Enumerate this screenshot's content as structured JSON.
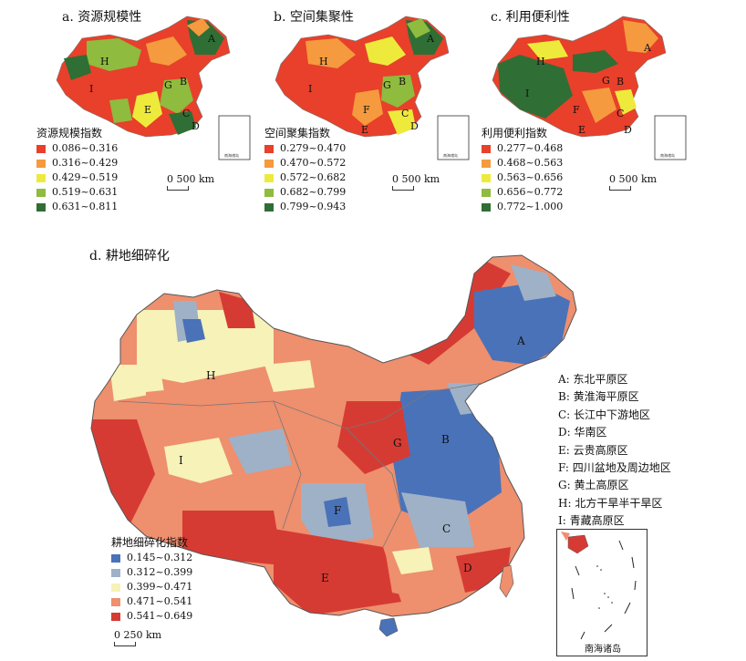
{
  "panels": {
    "a": {
      "title": "a. 资源规模性",
      "legend_title": "资源规模指数",
      "classes": [
        {
          "range": "0.086~0.316",
          "color": "#e8402a"
        },
        {
          "range": "0.316~0.429",
          "color": "#f59a3e"
        },
        {
          "range": "0.429~0.519",
          "color": "#eeea3c"
        },
        {
          "range": "0.519~0.631",
          "color": "#8fbb3e"
        },
        {
          "range": "0.631~0.811",
          "color": "#2f6e34"
        }
      ],
      "scale": "0   500 km"
    },
    "b": {
      "title": "b. 空间集聚性",
      "legend_title": "空间聚集指数",
      "classes": [
        {
          "range": "0.279~0.470",
          "color": "#e8402a"
        },
        {
          "range": "0.470~0.572",
          "color": "#f59a3e"
        },
        {
          "range": "0.572~0.682",
          "color": "#eeea3c"
        },
        {
          "range": "0.682~0.799",
          "color": "#8fbb3e"
        },
        {
          "range": "0.799~0.943",
          "color": "#2f6e34"
        }
      ],
      "scale": "0   500 km"
    },
    "c": {
      "title": "c. 利用便利性",
      "legend_title": "利用便利指数",
      "classes": [
        {
          "range": "0.277~0.468",
          "color": "#e8402a"
        },
        {
          "range": "0.468~0.563",
          "color": "#f59a3e"
        },
        {
          "range": "0.563~0.656",
          "color": "#eeea3c"
        },
        {
          "range": "0.656~0.772",
          "color": "#8fbb3e"
        },
        {
          "range": "0.772~1.000",
          "color": "#2f6e34"
        }
      ],
      "scale": "0   500 km"
    },
    "d": {
      "title": "d. 耕地细碎化",
      "legend_title": "耕地细碎化指数",
      "classes": [
        {
          "range": "0.145~0.312",
          "color": "#4a72b8"
        },
        {
          "range": "0.312~0.399",
          "color": "#9fb1c6"
        },
        {
          "range": "0.399~0.471",
          "color": "#f6f2b8"
        },
        {
          "range": "0.471~0.541",
          "color": "#ee8f6e"
        },
        {
          "range": "0.541~0.649",
          "color": "#d63b33"
        }
      ],
      "scale": "0   250 km"
    }
  },
  "regions": [
    {
      "letter": "A",
      "name": "A: 东北平原区"
    },
    {
      "letter": "B",
      "name": "B: 黄淮海平原区"
    },
    {
      "letter": "C",
      "name": "C: 长江中下游地区"
    },
    {
      "letter": "D",
      "name": "D: 华南区"
    },
    {
      "letter": "E",
      "name": "E: 云贵高原区"
    },
    {
      "letter": "F",
      "name": "F: 四川盆地及周边地区"
    },
    {
      "letter": "G",
      "name": "G: 黄土高原区"
    },
    {
      "letter": "H",
      "name": "H: 北方干旱半干旱区"
    },
    {
      "letter": "I",
      "name": "I: 青藏高原区"
    }
  ],
  "map_labels": {
    "A": "A",
    "B": "B",
    "C": "C",
    "D": "D",
    "E": "E",
    "F": "F",
    "G": "G",
    "H": "H",
    "I": "I"
  },
  "inset": {
    "label": "南海诸岛",
    "small_label": "南海诸岛"
  }
}
